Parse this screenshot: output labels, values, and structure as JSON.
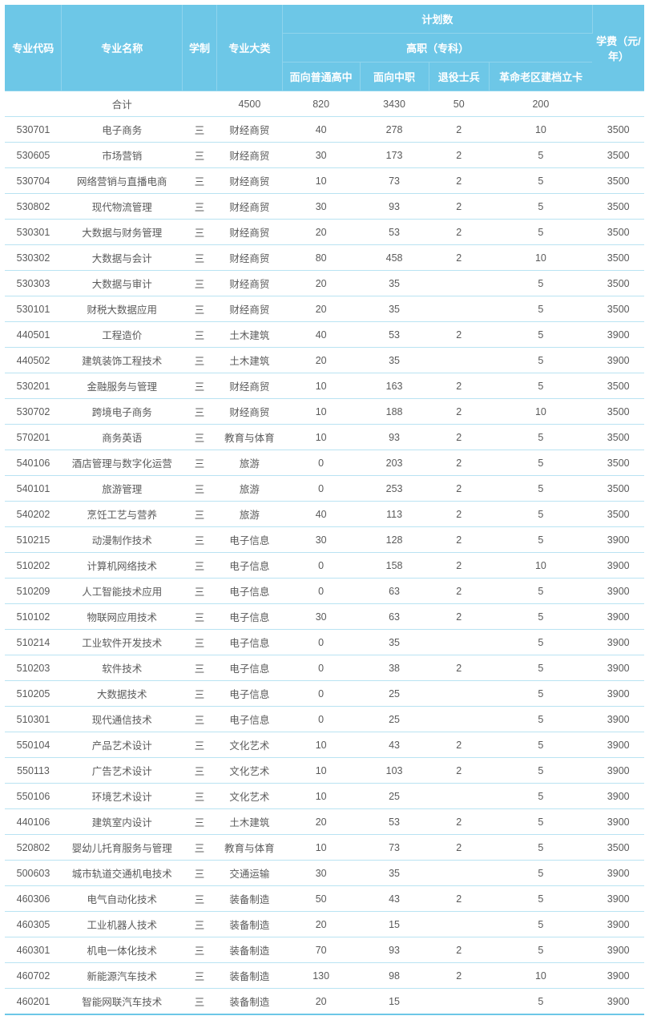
{
  "header": {
    "code": "专业代码",
    "name": "专业名称",
    "system": "学制",
    "category": "专业大类",
    "plan": "计划数",
    "plan_sub": "高职（专科）",
    "gs": "面向普通高中",
    "zz": "面向中职",
    "sb": "退役士兵",
    "gm": "革命老区建档立卡",
    "fee": "学费（元/年）"
  },
  "total_label": "合计",
  "total": {
    "category": "4500",
    "gs": "820",
    "zz": "3430",
    "sb": "50",
    "gm": "200"
  },
  "rows": [
    {
      "code": "530701",
      "name": "电子商务",
      "sys": "三",
      "cat": "财经商贸",
      "gs": "40",
      "zz": "278",
      "sb": "2",
      "gm": "10",
      "fee": "3500"
    },
    {
      "code": "530605",
      "name": "市场营销",
      "sys": "三",
      "cat": "财经商贸",
      "gs": "30",
      "zz": "173",
      "sb": "2",
      "gm": "5",
      "fee": "3500"
    },
    {
      "code": "530704",
      "name": "网络营销与直播电商",
      "sys": "三",
      "cat": "财经商贸",
      "gs": "10",
      "zz": "73",
      "sb": "2",
      "gm": "5",
      "fee": "3500"
    },
    {
      "code": "530802",
      "name": "现代物流管理",
      "sys": "三",
      "cat": "财经商贸",
      "gs": "30",
      "zz": "93",
      "sb": "2",
      "gm": "5",
      "fee": "3500"
    },
    {
      "code": "530301",
      "name": "大数据与财务管理",
      "sys": "三",
      "cat": "财经商贸",
      "gs": "20",
      "zz": "53",
      "sb": "2",
      "gm": "5",
      "fee": "3500"
    },
    {
      "code": "530302",
      "name": "大数据与会计",
      "sys": "三",
      "cat": "财经商贸",
      "gs": "80",
      "zz": "458",
      "sb": "2",
      "gm": "10",
      "fee": "3500"
    },
    {
      "code": "530303",
      "name": "大数据与审计",
      "sys": "三",
      "cat": "财经商贸",
      "gs": "20",
      "zz": "35",
      "sb": "",
      "gm": "5",
      "fee": "3500"
    },
    {
      "code": "530101",
      "name": "财税大数据应用",
      "sys": "三",
      "cat": "财经商贸",
      "gs": "20",
      "zz": "35",
      "sb": "",
      "gm": "5",
      "fee": "3500"
    },
    {
      "code": "440501",
      "name": "工程造价",
      "sys": "三",
      "cat": "土木建筑",
      "gs": "40",
      "zz": "53",
      "sb": "2",
      "gm": "5",
      "fee": "3900"
    },
    {
      "code": "440502",
      "name": "建筑装饰工程技术",
      "sys": "三",
      "cat": "土木建筑",
      "gs": "20",
      "zz": "35",
      "sb": "",
      "gm": "5",
      "fee": "3900"
    },
    {
      "code": "530201",
      "name": "金融服务与管理",
      "sys": "三",
      "cat": "财经商贸",
      "gs": "10",
      "zz": "163",
      "sb": "2",
      "gm": "5",
      "fee": "3500"
    },
    {
      "code": "530702",
      "name": "跨境电子商务",
      "sys": "三",
      "cat": "财经商贸",
      "gs": "10",
      "zz": "188",
      "sb": "2",
      "gm": "10",
      "fee": "3500"
    },
    {
      "code": "570201",
      "name": "商务英语",
      "sys": "三",
      "cat": "教育与体育",
      "gs": "10",
      "zz": "93",
      "sb": "2",
      "gm": "5",
      "fee": "3500"
    },
    {
      "code": "540106",
      "name": "酒店管理与数字化运营",
      "sys": "三",
      "cat": "旅游",
      "gs": "0",
      "zz": "203",
      "sb": "2",
      "gm": "5",
      "fee": "3500"
    },
    {
      "code": "540101",
      "name": "旅游管理",
      "sys": "三",
      "cat": "旅游",
      "gs": "0",
      "zz": "253",
      "sb": "2",
      "gm": "5",
      "fee": "3500"
    },
    {
      "code": "540202",
      "name": "烹饪工艺与营养",
      "sys": "三",
      "cat": "旅游",
      "gs": "40",
      "zz": "113",
      "sb": "2",
      "gm": "5",
      "fee": "3500"
    },
    {
      "code": "510215",
      "name": "动漫制作技术",
      "sys": "三",
      "cat": "电子信息",
      "gs": "30",
      "zz": "128",
      "sb": "2",
      "gm": "5",
      "fee": "3900"
    },
    {
      "code": "510202",
      "name": "计算机网络技术",
      "sys": "三",
      "cat": "电子信息",
      "gs": "0",
      "zz": "158",
      "sb": "2",
      "gm": "10",
      "fee": "3900"
    },
    {
      "code": "510209",
      "name": "人工智能技术应用",
      "sys": "三",
      "cat": "电子信息",
      "gs": "0",
      "zz": "63",
      "sb": "2",
      "gm": "5",
      "fee": "3900"
    },
    {
      "code": "510102",
      "name": "物联网应用技术",
      "sys": "三",
      "cat": "电子信息",
      "gs": "30",
      "zz": "63",
      "sb": "2",
      "gm": "5",
      "fee": "3900"
    },
    {
      "code": "510214",
      "name": "工业软件开发技术",
      "sys": "三",
      "cat": "电子信息",
      "gs": "0",
      "zz": "35",
      "sb": "",
      "gm": "5",
      "fee": "3900"
    },
    {
      "code": "510203",
      "name": "软件技术",
      "sys": "三",
      "cat": "电子信息",
      "gs": "0",
      "zz": "38",
      "sb": "2",
      "gm": "5",
      "fee": "3900"
    },
    {
      "code": "510205",
      "name": "大数据技术",
      "sys": "三",
      "cat": "电子信息",
      "gs": "0",
      "zz": "25",
      "sb": "",
      "gm": "5",
      "fee": "3900"
    },
    {
      "code": "510301",
      "name": "现代通信技术",
      "sys": "三",
      "cat": "电子信息",
      "gs": "0",
      "zz": "25",
      "sb": "",
      "gm": "5",
      "fee": "3900"
    },
    {
      "code": "550104",
      "name": "产品艺术设计",
      "sys": "三",
      "cat": "文化艺术",
      "gs": "10",
      "zz": "43",
      "sb": "2",
      "gm": "5",
      "fee": "3900"
    },
    {
      "code": "550113",
      "name": "广告艺术设计",
      "sys": "三",
      "cat": "文化艺术",
      "gs": "10",
      "zz": "103",
      "sb": "2",
      "gm": "5",
      "fee": "3900"
    },
    {
      "code": "550106",
      "name": "环境艺术设计",
      "sys": "三",
      "cat": "文化艺术",
      "gs": "10",
      "zz": "25",
      "sb": "",
      "gm": "5",
      "fee": "3900"
    },
    {
      "code": "440106",
      "name": "建筑室内设计",
      "sys": "三",
      "cat": "土木建筑",
      "gs": "20",
      "zz": "53",
      "sb": "2",
      "gm": "5",
      "fee": "3900"
    },
    {
      "code": "520802",
      "name": "婴幼儿托育服务与管理",
      "sys": "三",
      "cat": "教育与体育",
      "gs": "10",
      "zz": "73",
      "sb": "2",
      "gm": "5",
      "fee": "3500"
    },
    {
      "code": "500603",
      "name": "城市轨道交通机电技术",
      "sys": "三",
      "cat": "交通运输",
      "gs": "30",
      "zz": "35",
      "sb": "",
      "gm": "5",
      "fee": "3900"
    },
    {
      "code": "460306",
      "name": "电气自动化技术",
      "sys": "三",
      "cat": "装备制造",
      "gs": "50",
      "zz": "43",
      "sb": "2",
      "gm": "5",
      "fee": "3900"
    },
    {
      "code": "460305",
      "name": "工业机器人技术",
      "sys": "三",
      "cat": "装备制造",
      "gs": "20",
      "zz": "15",
      "sb": "",
      "gm": "5",
      "fee": "3900"
    },
    {
      "code": "460301",
      "name": "机电一体化技术",
      "sys": "三",
      "cat": "装备制造",
      "gs": "70",
      "zz": "93",
      "sb": "2",
      "gm": "5",
      "fee": "3900"
    },
    {
      "code": "460702",
      "name": "新能源汽车技术",
      "sys": "三",
      "cat": "装备制造",
      "gs": "130",
      "zz": "98",
      "sb": "2",
      "gm": "10",
      "fee": "3900"
    },
    {
      "code": "460201",
      "name": "智能网联汽车技术",
      "sys": "三",
      "cat": "装备制造",
      "gs": "20",
      "zz": "15",
      "sb": "",
      "gm": "5",
      "fee": "3900"
    }
  ]
}
